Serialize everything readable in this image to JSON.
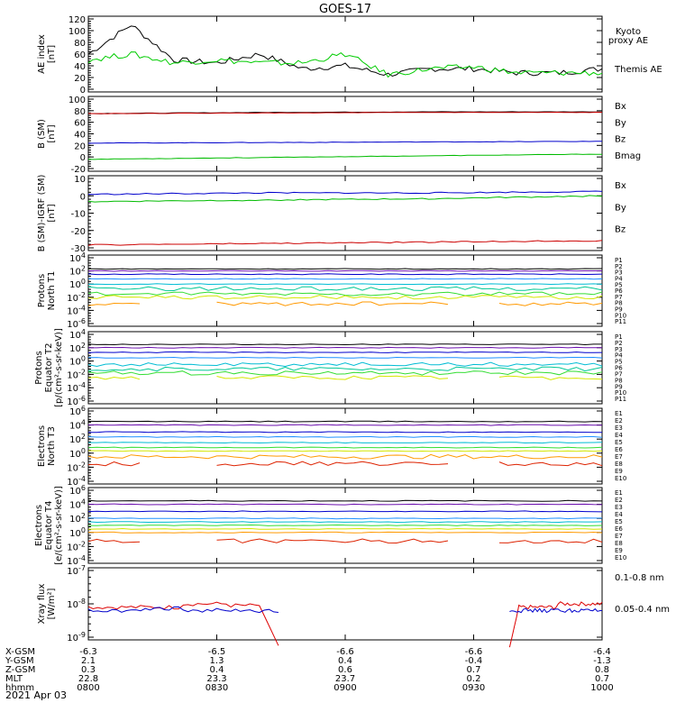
{
  "title": "GOES-17",
  "date_label": "2021 Apr 03",
  "panels": [
    {
      "id": "ae",
      "ylabel_lines": [
        "AE index",
        "[nT]"
      ],
      "yticks": [
        "120",
        "100",
        "80",
        "60",
        "40",
        "20",
        "0"
      ],
      "yscale": "linear",
      "legend": [
        {
          "text": "Kyoto",
          "color": "#00cc00"
        },
        {
          "text": "proxy AE",
          "color": "#00cc00"
        },
        {
          "text": "Themis AE",
          "color": "#000000"
        }
      ]
    },
    {
      "id": "b-sm",
      "ylabel_lines": [
        "B (SM)",
        "[nT]"
      ],
      "yticks": [
        "100",
        "80",
        "60",
        "40",
        "20",
        "0",
        "-20"
      ],
      "yscale": "linear",
      "legend": [
        {
          "text": "Bx",
          "color": "#0000cc"
        },
        {
          "text": "By",
          "color": "#00bb00"
        },
        {
          "text": "Bz",
          "color": "#cc0000"
        },
        {
          "text": "Bmag",
          "color": "#000000"
        }
      ]
    },
    {
      "id": "b-igrf",
      "ylabel_lines": [
        "B (SM)-IGRF (SM)",
        "[nT]"
      ],
      "yticks": [
        "10",
        "0",
        "-10",
        "-20",
        "-30"
      ],
      "yscale": "linear",
      "legend": [
        {
          "text": "Bx",
          "color": "#0000cc"
        },
        {
          "text": "By",
          "color": "#00bb00"
        },
        {
          "text": "Bz",
          "color": "#cc0000"
        }
      ]
    },
    {
      "id": "protons-t1",
      "ylabel_lines": [
        "Protons",
        "North T1"
      ],
      "yticks": [
        "10^4",
        "10^2",
        "10^0",
        "10^-2",
        "10^-4",
        "10^-6"
      ],
      "yscale": "log",
      "legend": [
        {
          "text": "P1",
          "color": "#000000"
        },
        {
          "text": "P2",
          "color": "#6a0dad"
        },
        {
          "text": "P3",
          "color": "#0000cc"
        },
        {
          "text": "P4",
          "color": "#1e90ff"
        },
        {
          "text": "P5",
          "color": "#00bcd4"
        },
        {
          "text": "P6",
          "color": "#00c896"
        },
        {
          "text": "P7",
          "color": "#33dd33"
        },
        {
          "text": "P8",
          "color": "#d4e600"
        },
        {
          "text": "P9",
          "color": "#ff9900"
        },
        {
          "text": "P10",
          "color": "#dd2200"
        },
        {
          "text": "P11",
          "color": "#aa0000"
        }
      ]
    },
    {
      "id": "protons-t2",
      "ylabel_lines": [
        "Protons",
        "Equator T2",
        "[p/(cm²-s-sr-keV)]"
      ],
      "yticks": [
        "10^4",
        "10^2",
        "10^0",
        "10^-2",
        "10^-4",
        "10^-6"
      ],
      "yscale": "log",
      "legend": [
        {
          "text": "P1",
          "color": "#000000"
        },
        {
          "text": "P2",
          "color": "#6a0dad"
        },
        {
          "text": "P3",
          "color": "#0000cc"
        },
        {
          "text": "P4",
          "color": "#1e90ff"
        },
        {
          "text": "P5",
          "color": "#00bcd4"
        },
        {
          "text": "P6",
          "color": "#00c896"
        },
        {
          "text": "P7",
          "color": "#33dd33"
        },
        {
          "text": "P8",
          "color": "#d4e600"
        },
        {
          "text": "P9",
          "color": "#ff9900"
        },
        {
          "text": "P10",
          "color": "#dd2200"
        },
        {
          "text": "P11",
          "color": "#aa0000"
        }
      ]
    },
    {
      "id": "electrons-t3",
      "ylabel_lines": [
        "Electrons",
        "North T3"
      ],
      "yticks": [
        "10^6",
        "10^4",
        "10^2",
        "10^0",
        "10^-2",
        "10^-4"
      ],
      "yscale": "log",
      "legend": [
        {
          "text": "E1",
          "color": "#000000"
        },
        {
          "text": "E2",
          "color": "#6a0dad"
        },
        {
          "text": "E3",
          "color": "#0000cc"
        },
        {
          "text": "E4",
          "color": "#1e90ff"
        },
        {
          "text": "E5",
          "color": "#00bcd4"
        },
        {
          "text": "E6",
          "color": "#33dd33"
        },
        {
          "text": "E7",
          "color": "#d4e600"
        },
        {
          "text": "E8",
          "color": "#ff9900"
        },
        {
          "text": "E9",
          "color": "#dd2200"
        },
        {
          "text": "E10",
          "color": "#aa0000"
        }
      ]
    },
    {
      "id": "electrons-t4",
      "ylabel_lines": [
        "Electrons",
        "Equator T4",
        "[e/(cm²-s-sr-keV)]"
      ],
      "yticks": [
        "10^6",
        "10^4",
        "10^2",
        "10^0",
        "10^-2",
        "10^-4"
      ],
      "yscale": "log",
      "legend": [
        {
          "text": "E1",
          "color": "#000000"
        },
        {
          "text": "E2",
          "color": "#6a0dad"
        },
        {
          "text": "E3",
          "color": "#0000cc"
        },
        {
          "text": "E4",
          "color": "#1e90ff"
        },
        {
          "text": "E5",
          "color": "#00bcd4"
        },
        {
          "text": "E6",
          "color": "#33dd33"
        },
        {
          "text": "E7",
          "color": "#d4e600"
        },
        {
          "text": "E8",
          "color": "#ff9900"
        },
        {
          "text": "E9",
          "color": "#dd2200"
        },
        {
          "text": "E10",
          "color": "#aa0000"
        }
      ]
    },
    {
      "id": "xray",
      "ylabel_lines": [
        "Xray flux",
        "[W/m²]"
      ],
      "yticks": [
        "10^-7",
        "10^-8",
        "10^-9"
      ],
      "yscale": "log",
      "legend": [
        {
          "text": "0.1-0.8 nm",
          "color": "#dd0000"
        },
        {
          "text": "0.05-0.4 nm",
          "color": "#0000cc"
        }
      ]
    }
  ],
  "ephemeris": {
    "row_labels": [
      "X-GSM",
      "Y-GSM",
      "Z-GSM",
      "MLT",
      "hhmm"
    ],
    "columns": [
      [
        "-6.3",
        "2.1",
        "0.3",
        "22.8",
        "0800"
      ],
      [
        "-6.5",
        "1.3",
        "0.4",
        "23.3",
        "0830"
      ],
      [
        "-6.6",
        "0.4",
        "0.6",
        "23.7",
        "0900"
      ],
      [
        "-6.6",
        "-0.4",
        "0.7",
        "0.2",
        "0930"
      ],
      [
        "-6.4",
        "-1.3",
        "0.8",
        "0.7",
        "1000"
      ]
    ]
  },
  "chart_data": [
    {
      "type": "line",
      "title": "GOES-17",
      "ylabel": "AE index [nT]",
      "ylim": [
        0,
        120
      ],
      "x_hhmm": [
        "0800",
        "0810",
        "0820",
        "0830",
        "0840",
        "0850",
        "0900",
        "0910",
        "0920",
        "0930",
        "0940",
        "0950",
        "1000"
      ],
      "series": [
        {
          "name": "Themis AE",
          "values": [
            60,
            110,
            50,
            45,
            60,
            35,
            40,
            25,
            35,
            35,
            28,
            28,
            35
          ]
        },
        {
          "name": "Kyoto proxy AE",
          "values": [
            50,
            60,
            45,
            50,
            45,
            45,
            60,
            25,
            35,
            38,
            28,
            28,
            28
          ]
        }
      ]
    },
    {
      "type": "line",
      "ylabel": "B (SM) [nT]",
      "ylim": [
        -20,
        100
      ],
      "series": [
        {
          "name": "Bmag",
          "values": [
            75,
            77,
            78,
            78
          ]
        },
        {
          "name": "Bz",
          "values": [
            75,
            76,
            77,
            77
          ]
        },
        {
          "name": "Bx",
          "values": [
            24,
            25,
            26,
            27
          ]
        },
        {
          "name": "By",
          "values": [
            -4,
            -1,
            2,
            5
          ]
        }
      ]
    },
    {
      "type": "line",
      "ylabel": "B (SM)-IGRF (SM) [nT]",
      "ylim": [
        -32,
        16
      ],
      "series": [
        {
          "name": "Bx",
          "values": [
            5,
            6,
            6,
            7
          ]
        },
        {
          "name": "By",
          "values": [
            0,
            1,
            2,
            4
          ]
        },
        {
          "name": "Bz",
          "values": [
            -30,
            -29,
            -28,
            -27
          ]
        }
      ]
    },
    {
      "type": "line",
      "ylabel": "Protons North T1",
      "yscale": "log",
      "ylim": [
        "1e-6",
        "1e4"
      ],
      "series_levels_log10": [
        2.3,
        2,
        1.5,
        0.8,
        0,
        -0.7,
        -1.5,
        -2,
        -3
      ]
    },
    {
      "type": "line",
      "ylabel": "Protons Equator T2 [p/(cm²-s-sr-keV)]",
      "yscale": "log",
      "ylim": [
        "1e-6",
        "1e4"
      ],
      "series_levels_log10": [
        2.5,
        2,
        1.3,
        0.5,
        -0.5,
        -1.2,
        -1.8,
        -2.5
      ]
    },
    {
      "type": "line",
      "ylabel": "Electrons North T3",
      "yscale": "log",
      "ylim": [
        "1e-4",
        "1e6"
      ],
      "series_levels_log10": [
        4.5,
        4,
        3,
        2.3,
        1.5,
        0.8,
        0.3,
        -0.5,
        -1.5
      ]
    },
    {
      "type": "line",
      "ylabel": "Electrons Equator T4 [e/(cm²-s-sr-keV)]",
      "yscale": "log",
      "ylim": [
        "1e-4",
        "1e6"
      ],
      "series_levels_log10": [
        4.5,
        4,
        3,
        2,
        1.5,
        1,
        0.5,
        0,
        -1.2
      ]
    },
    {
      "type": "line",
      "ylabel": "Xray flux [W/m²]",
      "yscale": "log",
      "ylim": [
        "1e-9",
        "1e-7"
      ],
      "series": [
        {
          "name": "0.1-0.8 nm",
          "values_log10": [
            -8.1,
            -8.1,
            -8.0,
            -8.05,
            "gap",
            -8.1,
            -8.0
          ]
        },
        {
          "name": "0.05-0.4 nm",
          "values_log10": [
            -8.2,
            -8.15,
            -8.2,
            -8.2,
            "gap",
            -8.2,
            -8.2
          ]
        }
      ]
    }
  ]
}
